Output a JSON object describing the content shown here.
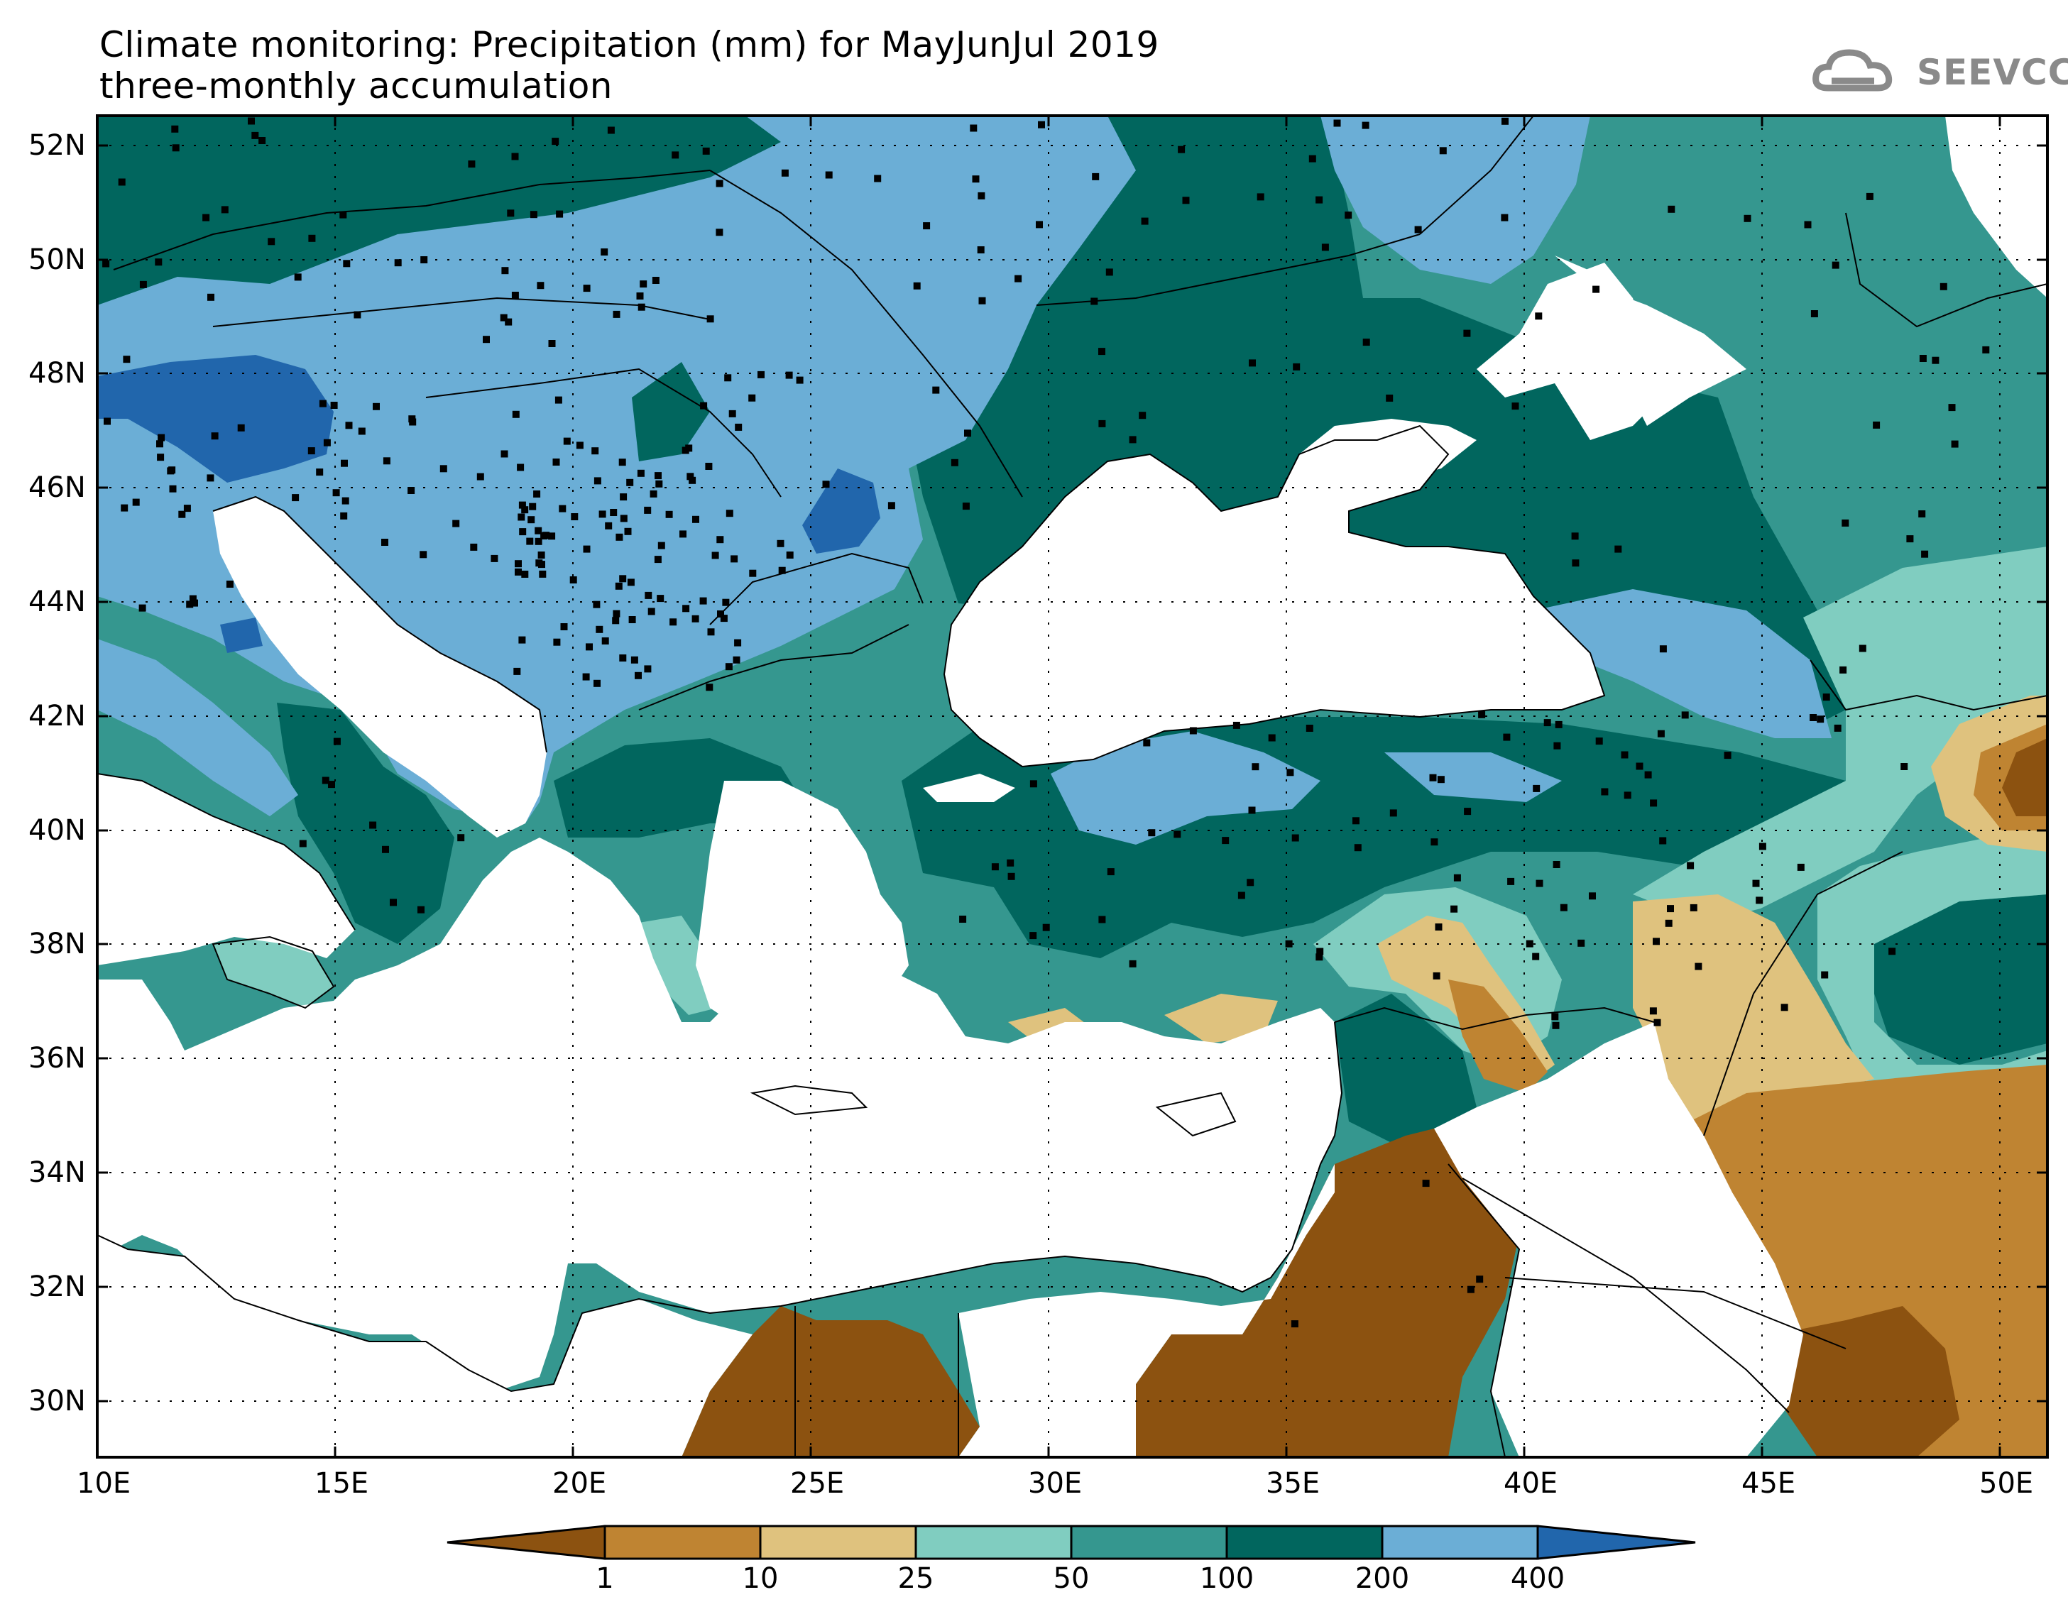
{
  "title": {
    "line1": "Climate monitoring: Precipitation (mm) for MayJunJul 2019",
    "line2": "three-monthly accumulation"
  },
  "logo": {
    "text": "SEEVCCC",
    "icon": "cloud-icon"
  },
  "axes": {
    "lat_labels": [
      "52N",
      "50N",
      "48N",
      "46N",
      "44N",
      "42N",
      "40N",
      "38N",
      "36N",
      "34N",
      "32N",
      "30N"
    ],
    "lon_labels": [
      "10E",
      "15E",
      "20E",
      "25E",
      "30E",
      "35E",
      "40E",
      "45E",
      "50E"
    ],
    "lat_range": [
      29,
      52.5
    ],
    "lon_range": [
      10,
      51
    ]
  },
  "colorbar": {
    "thresholds": [
      "1",
      "10",
      "25",
      "50",
      "100",
      "200",
      "400"
    ],
    "colors": [
      "#8c5210",
      "#bf8432",
      "#dfc27e",
      "#80cdc0",
      "#35978f",
      "#01665e",
      "#6baed6",
      "#2166ac"
    ]
  },
  "stations_visible": true
}
